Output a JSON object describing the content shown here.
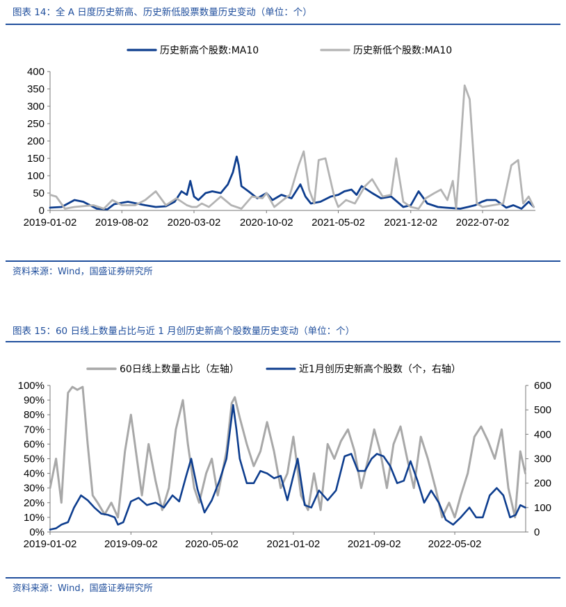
{
  "charts": [
    {
      "title": "图表 14：全 A 日度历史新高、历史新低股票数量历史变动（单位：个）",
      "source": "资料来源：Wind，国盛证券研究所",
      "chart_data": {
        "type": "line",
        "title": "图表 14：全 A 日度历史新高、历史新低股票数量历史变动（单位：个）",
        "xlabel": "",
        "ylabel": "",
        "x_ticks": [
          "2019-01-02",
          "2019-08-02",
          "2020-03-02",
          "2020-10-02",
          "2021-05-02",
          "2021-12-02",
          "2022-07-02"
        ],
        "ylim": [
          0,
          400
        ],
        "y_ticks": [
          "0",
          "50",
          "100",
          "150",
          "200",
          "250",
          "300",
          "350",
          "400"
        ],
        "legend_position": "top-center",
        "grid": false,
        "series": [
          {
            "name": "历史新高个股数:MA10",
            "color": "#0d3d8e",
            "x": [
              "2019-01-02",
              "2019-02-05",
              "2019-03-15",
              "2019-04-10",
              "2019-05-20",
              "2019-06-20",
              "2019-07-10",
              "2019-08-02",
              "2019-08-20",
              "2019-09-15",
              "2019-10-10",
              "2019-11-10",
              "2019-12-10",
              "2020-01-05",
              "2020-01-25",
              "2020-02-10",
              "2020-02-20",
              "2020-03-02",
              "2020-03-15",
              "2020-04-05",
              "2020-04-25",
              "2020-05-20",
              "2020-06-10",
              "2020-06-25",
              "2020-07-06",
              "2020-07-12",
              "2020-07-20",
              "2020-08-10",
              "2020-09-05",
              "2020-10-02",
              "2020-10-20",
              "2020-11-15",
              "2020-12-15",
              "2021-01-10",
              "2021-01-25",
              "2021-02-10",
              "2021-03-10",
              "2021-04-10",
              "2021-05-02",
              "2021-05-20",
              "2021-06-10",
              "2021-06-25",
              "2021-07-10",
              "2021-08-10",
              "2021-09-05",
              "2021-10-05",
              "2021-11-10",
              "2021-12-02",
              "2021-12-25",
              "2022-01-20",
              "2022-02-20",
              "2022-03-15",
              "2022-04-27",
              "2022-05-20",
              "2022-06-10",
              "2022-06-30",
              "2022-07-15",
              "2022-08-10",
              "2022-09-10",
              "2022-10-01",
              "2022-10-25",
              "2022-11-15",
              "2022-11-30"
            ],
            "values": [
              8,
              10,
              30,
              25,
              5,
              3,
              18,
              22,
              25,
              20,
              15,
              10,
              12,
              25,
              55,
              45,
              85,
              40,
              30,
              50,
              55,
              50,
              75,
              110,
              155,
              130,
              70,
              55,
              35,
              50,
              30,
              45,
              35,
              75,
              40,
              20,
              25,
              40,
              45,
              55,
              60,
              45,
              70,
              50,
              35,
              40,
              10,
              15,
              55,
              20,
              10,
              8,
              5,
              10,
              15,
              25,
              30,
              30,
              8,
              15,
              5,
              25,
              10
            ]
          },
          {
            "name": "历史新低个股数:MA10",
            "color": "#b3b3b3",
            "x": [
              "2019-01-02",
              "2019-01-20",
              "2019-02-15",
              "2019-03-15",
              "2019-05-10",
              "2019-06-10",
              "2019-07-05",
              "2019-08-02",
              "2019-09-10",
              "2019-10-10",
              "2019-11-10",
              "2019-12-10",
              "2020-01-10",
              "2020-02-10",
              "2020-02-25",
              "2020-03-10",
              "2020-03-25",
              "2020-04-15",
              "2020-05-20",
              "2020-06-20",
              "2020-07-20",
              "2020-08-20",
              "2020-09-20",
              "2020-10-02",
              "2020-10-25",
              "2020-11-20",
              "2020-12-10",
              "2021-01-05",
              "2021-01-20",
              "2021-02-05",
              "2021-02-20",
              "2021-03-05",
              "2021-03-25",
              "2021-04-20",
              "2021-05-02",
              "2021-05-25",
              "2021-06-20",
              "2021-07-20",
              "2021-08-10",
              "2021-09-10",
              "2021-10-05",
              "2021-10-20",
              "2021-11-10",
              "2021-12-02",
              "2021-12-25",
              "2022-01-15",
              "2022-02-10",
              "2022-03-01",
              "2022-03-20",
              "2022-04-05",
              "2022-04-15",
              "2022-04-27",
              "2022-05-10",
              "2022-05-25",
              "2022-06-15",
              "2022-07-02",
              "2022-08-01",
              "2022-09-01",
              "2022-09-25",
              "2022-10-15",
              "2022-10-30",
              "2022-11-15",
              "2022-11-30"
            ],
            "values": [
              45,
              40,
              5,
              10,
              15,
              5,
              30,
              15,
              15,
              30,
              55,
              15,
              35,
              15,
              10,
              10,
              20,
              10,
              40,
              15,
              5,
              40,
              35,
              50,
              10,
              30,
              45,
              130,
              170,
              60,
              20,
              145,
              150,
              40,
              10,
              30,
              20,
              70,
              90,
              40,
              45,
              150,
              25,
              10,
              5,
              35,
              50,
              60,
              30,
              85,
              5,
              170,
              360,
              320,
              20,
              10,
              15,
              20,
              130,
              145,
              20,
              40,
              10
            ]
          }
        ]
      }
    },
    {
      "title": "图表 15：60 日线上数量占比与近 1 月创历史新高个股数量历史变动（单位：个）",
      "source": "资料来源：Wind，国盛证券研究所",
      "chart_data": {
        "type": "line",
        "title": "图表 15：60 日线上数量占比与近 1 月创历史新高个股数量历史变动（单位：个）",
        "xlabel": "",
        "ylabel": "",
        "ylabel_right": "",
        "x_ticks": [
          "2019-01-02",
          "2019-09-02",
          "2020-05-02",
          "2021-01-02",
          "2021-09-02",
          "2022-05-02"
        ],
        "ylim": [
          0,
          100
        ],
        "ylim_right": [
          0,
          600
        ],
        "y_ticks": [
          "0%",
          "10%",
          "20%",
          "30%",
          "40%",
          "50%",
          "60%",
          "70%",
          "80%",
          "90%",
          "100%"
        ],
        "y_ticks_right": [
          "0",
          "100",
          "200",
          "300",
          "400",
          "500",
          "600"
        ],
        "legend_position": "top-center",
        "grid": false,
        "series": [
          {
            "name": "60日线上数量占比（左轴）",
            "axis": "left",
            "color": "#a8a8a8",
            "x": [
              "2019-01-02",
              "2019-01-20",
              "2019-02-05",
              "2019-02-25",
              "2019-03-10",
              "2019-03-25",
              "2019-04-10",
              "2019-04-25",
              "2019-05-10",
              "2019-05-25",
              "2019-06-15",
              "2019-07-05",
              "2019-07-25",
              "2019-08-15",
              "2019-09-02",
              "2019-09-20",
              "2019-10-05",
              "2019-10-25",
              "2019-11-15",
              "2019-12-05",
              "2019-12-25",
              "2020-01-15",
              "2020-02-05",
              "2020-02-20",
              "2020-03-10",
              "2020-03-25",
              "2020-04-15",
              "2020-05-02",
              "2020-05-20",
              "2020-06-15",
              "2020-07-01",
              "2020-07-10",
              "2020-07-25",
              "2020-08-15",
              "2020-09-05",
              "2020-09-25",
              "2020-10-15",
              "2020-11-05",
              "2020-11-25",
              "2020-12-15",
              "2021-01-02",
              "2021-01-25",
              "2021-02-15",
              "2021-03-05",
              "2021-03-25",
              "2021-04-15",
              "2021-05-05",
              "2021-05-25",
              "2021-06-15",
              "2021-07-05",
              "2021-07-25",
              "2021-08-15",
              "2021-09-02",
              "2021-09-20",
              "2021-10-10",
              "2021-10-30",
              "2021-11-20",
              "2021-12-10",
              "2021-12-30",
              "2022-01-20",
              "2022-02-10",
              "2022-03-05",
              "2022-03-25",
              "2022-04-15",
              "2022-05-02",
              "2022-05-20",
              "2022-06-10",
              "2022-06-30",
              "2022-07-20",
              "2022-08-10",
              "2022-08-30",
              "2022-09-20",
              "2022-10-10",
              "2022-10-30",
              "2022-11-15",
              "2022-11-30"
            ],
            "values": [
              30,
              50,
              20,
              95,
              99,
              97,
              99,
              60,
              25,
              20,
              12,
              20,
              10,
              55,
              80,
              50,
              25,
              60,
              35,
              15,
              30,
              70,
              90,
              60,
              30,
              20,
              40,
              50,
              25,
              55,
              88,
              92,
              78,
              60,
              45,
              55,
              75,
              55,
              30,
              40,
              65,
              25,
              15,
              40,
              15,
              60,
              50,
              62,
              70,
              55,
              30,
              50,
              70,
              55,
              30,
              60,
              72,
              50,
              30,
              65,
              50,
              30,
              10,
              20,
              10,
              25,
              40,
              65,
              72,
              62,
              50,
              70,
              30,
              10,
              55,
              40
            ]
          },
          {
            "name": "近1月创历史新高个股数（个，右轴）",
            "axis": "right",
            "color": "#0d3d8e",
            "x": [
              "2019-01-02",
              "2019-01-20",
              "2019-02-05",
              "2019-02-25",
              "2019-03-15",
              "2019-04-05",
              "2019-04-25",
              "2019-05-15",
              "2019-06-05",
              "2019-06-25",
              "2019-07-15",
              "2019-07-25",
              "2019-08-10",
              "2019-09-02",
              "2019-09-25",
              "2019-10-20",
              "2019-11-15",
              "2019-12-10",
              "2020-01-05",
              "2020-01-25",
              "2020-02-15",
              "2020-03-01",
              "2020-03-20",
              "2020-04-10",
              "2020-05-02",
              "2020-05-25",
              "2020-06-15",
              "2020-07-05",
              "2020-07-15",
              "2020-07-25",
              "2020-08-15",
              "2020-09-05",
              "2020-09-25",
              "2020-10-15",
              "2020-11-05",
              "2020-11-25",
              "2020-12-15",
              "2021-01-02",
              "2021-01-15",
              "2021-02-05",
              "2021-02-25",
              "2021-03-20",
              "2021-04-15",
              "2021-05-10",
              "2021-06-05",
              "2021-06-25",
              "2021-07-15",
              "2021-08-05",
              "2021-08-25",
              "2021-09-10",
              "2021-09-30",
              "2021-10-20",
              "2021-11-10",
              "2021-11-30",
              "2021-12-20",
              "2022-01-10",
              "2022-01-30",
              "2022-02-20",
              "2022-03-15",
              "2022-04-05",
              "2022-04-27",
              "2022-05-20",
              "2022-06-15",
              "2022-07-05",
              "2022-07-25",
              "2022-08-15",
              "2022-09-05",
              "2022-09-25",
              "2022-10-15",
              "2022-11-01",
              "2022-11-15",
              "2022-11-30"
            ],
            "values": [
              10,
              15,
              30,
              40,
              100,
              150,
              130,
              100,
              75,
              70,
              60,
              30,
              40,
              125,
              140,
              110,
              120,
              100,
              150,
              125,
              230,
              300,
              175,
              80,
              130,
              210,
              300,
              520,
              420,
              300,
              200,
              200,
              250,
              240,
              220,
              230,
              130,
              230,
              300,
              110,
              100,
              170,
              130,
              170,
              310,
              320,
              250,
              250,
              300,
              320,
              310,
              270,
              200,
              210,
              290,
              210,
              120,
              170,
              120,
              50,
              30,
              60,
              100,
              60,
              60,
              150,
              180,
              150,
              60,
              70,
              110,
              100
            ]
          }
        ]
      }
    }
  ]
}
